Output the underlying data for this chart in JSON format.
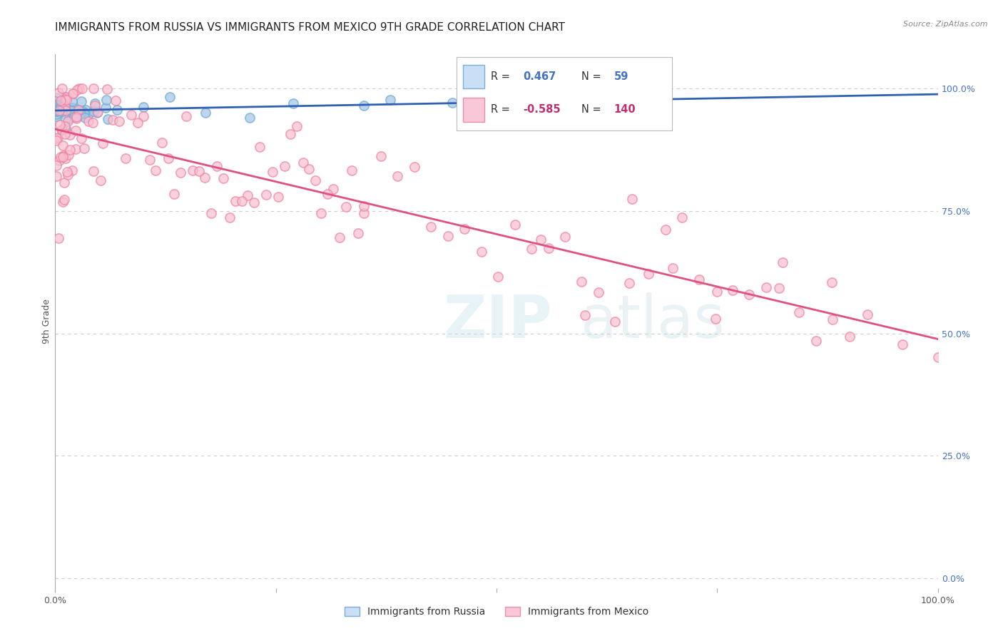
{
  "title": "IMMIGRANTS FROM RUSSIA VS IMMIGRANTS FROM MEXICO 9TH GRADE CORRELATION CHART",
  "source": "Source: ZipAtlas.com",
  "ylabel": "9th Grade",
  "russia_R": 0.467,
  "russia_N": 59,
  "mexico_R": -0.585,
  "mexico_N": 140,
  "russia_dot_color": "#a8c8e8",
  "russia_dot_edge": "#6baed6",
  "russia_line_color": "#3060b0",
  "mexico_dot_color": "#f8c0d0",
  "mexico_dot_edge": "#f080a0",
  "mexico_line_color": "#e05080",
  "right_yticks": [
    0.0,
    0.25,
    0.5,
    0.75,
    1.0
  ],
  "right_yticklabels": [
    "0.0%",
    "25.0%",
    "50.0%",
    "75.0%",
    "100.0%"
  ],
  "grid_color": "#cccccc",
  "background_color": "#ffffff",
  "title_fontsize": 11,
  "axis_fontsize": 9,
  "xlim": [
    0.0,
    1.0
  ],
  "ylim": [
    -0.02,
    1.07
  ],
  "russia_line_x0": 0.0,
  "russia_line_x1": 1.0,
  "russia_line_y0": 0.945,
  "russia_line_y1": 1.005,
  "mexico_line_x0": 0.0,
  "mexico_line_x1": 1.0,
  "mexico_line_y0": 0.925,
  "mexico_line_y1": 0.465
}
